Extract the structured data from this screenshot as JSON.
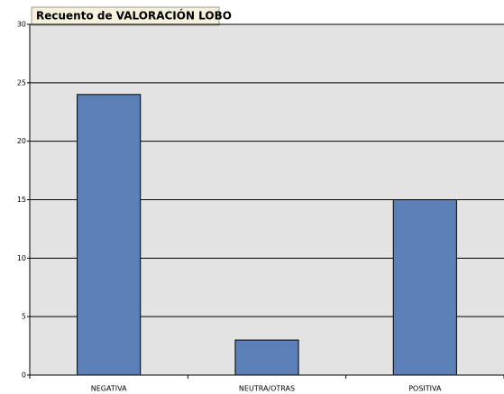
{
  "chart_data": {
    "type": "bar",
    "title": "Recuento de VALORACIÓN LOBO",
    "categories": [
      "NEGATIVA",
      "NEUTRA/OTRAS",
      "POSITIVA"
    ],
    "values": [
      24,
      3,
      15
    ],
    "color": "#5b80b8",
    "ylim": [
      0,
      30
    ],
    "yticks": [
      0,
      5,
      10,
      15,
      20,
      25,
      30
    ],
    "grid": true
  }
}
